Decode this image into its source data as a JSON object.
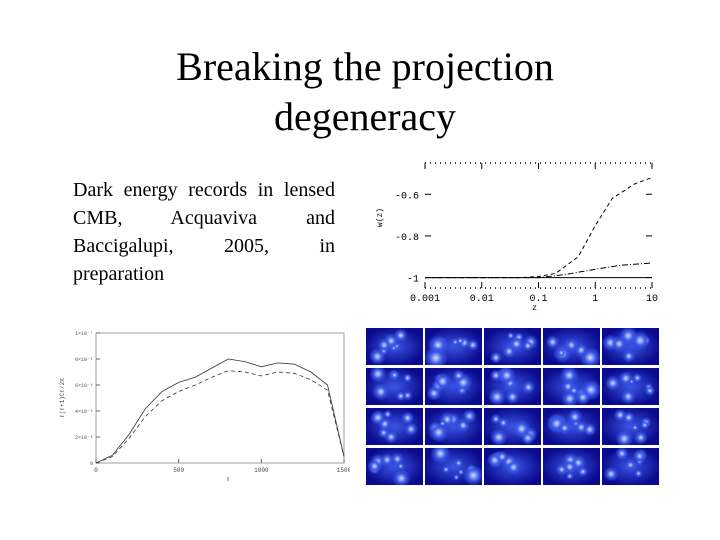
{
  "slide": {
    "title_line1": "Breaking the projection",
    "title_line2": "degeneracy",
    "body": "Dark energy records in lensed CMB, Acquaviva and Baccigalupi, 2005, in preparation"
  },
  "chart_data": [
    {
      "type": "line",
      "xscale": "log",
      "xlim": [
        0.001,
        10
      ],
      "xticklabels": [
        "0.001",
        "0.01",
        "0.1",
        "1",
        "10"
      ],
      "xlabel": "z",
      "ylabel": "w(z)",
      "yticklabels": [
        "-0.6",
        "-0.8",
        "-1"
      ],
      "ylim": [
        -1.05,
        -0.45
      ],
      "series": [
        {
          "x": [
            0.001,
            0.01,
            0.05,
            0.1,
            0.2,
            0.5,
            1,
            2,
            5,
            10
          ],
          "y": [
            -1.0,
            -1.0,
            -1.0,
            -0.995,
            -0.98,
            -0.9,
            -0.75,
            -0.62,
            -0.55,
            -0.52
          ],
          "style": "dashed"
        },
        {
          "x": [
            0.001,
            0.01,
            0.1,
            0.3,
            1,
            3,
            10
          ],
          "y": [
            -1.0,
            -1.0,
            -1.0,
            -0.985,
            -0.96,
            -0.94,
            -0.93
          ],
          "style": "dashdot"
        },
        {
          "x": [
            0.001,
            10
          ],
          "y": [
            -1.0,
            -1.0
          ],
          "style": "solid"
        }
      ]
    },
    {
      "type": "line",
      "xlim": [
        0,
        1500
      ],
      "xticklabels": [
        "0",
        "500",
        "1000",
        "1500"
      ],
      "xlabel": "ℓ",
      "ylabel": "ℓ(ℓ+1)Cℓ/2π",
      "yticklabels": [
        "0",
        "2×10⁻⁸",
        "4×10⁻⁸",
        "6×10⁻⁸",
        "8×10⁻⁸",
        "1×10⁻⁷"
      ],
      "ylim": [
        0,
        1e-07
      ],
      "series": [
        {
          "x": [
            0,
            100,
            200,
            300,
            400,
            500,
            600,
            700,
            800,
            900,
            1000,
            1100,
            1200,
            1300,
            1400,
            1500
          ],
          "y": [
            0,
            6e-09,
            2.2e-08,
            4.2e-08,
            5.5e-08,
            6.2e-08,
            6.6e-08,
            7.3e-08,
            8e-08,
            7.8e-08,
            7.4e-08,
            7.7e-08,
            7.6e-08,
            7e-08,
            6e-08,
            5e-09
          ],
          "style": "solid"
        },
        {
          "x": [
            0,
            100,
            200,
            300,
            400,
            500,
            600,
            700,
            800,
            900,
            1000,
            1100,
            1200,
            1300,
            1400,
            1500
          ],
          "y": [
            0,
            5e-09,
            1.9e-08,
            3.6e-08,
            4.8e-08,
            5.5e-08,
            6e-08,
            6.6e-08,
            7.1e-08,
            7e-08,
            6.7e-08,
            7e-08,
            6.9e-08,
            6.4e-08,
            5.6e-08,
            5e-09
          ],
          "style": "dashed"
        }
      ]
    }
  ],
  "map_grid": {
    "rows": 4,
    "cols": 5,
    "color_dark": "#0a0a8c",
    "color_mid": "#3a55e6",
    "color_light": "#cfe0ff"
  }
}
